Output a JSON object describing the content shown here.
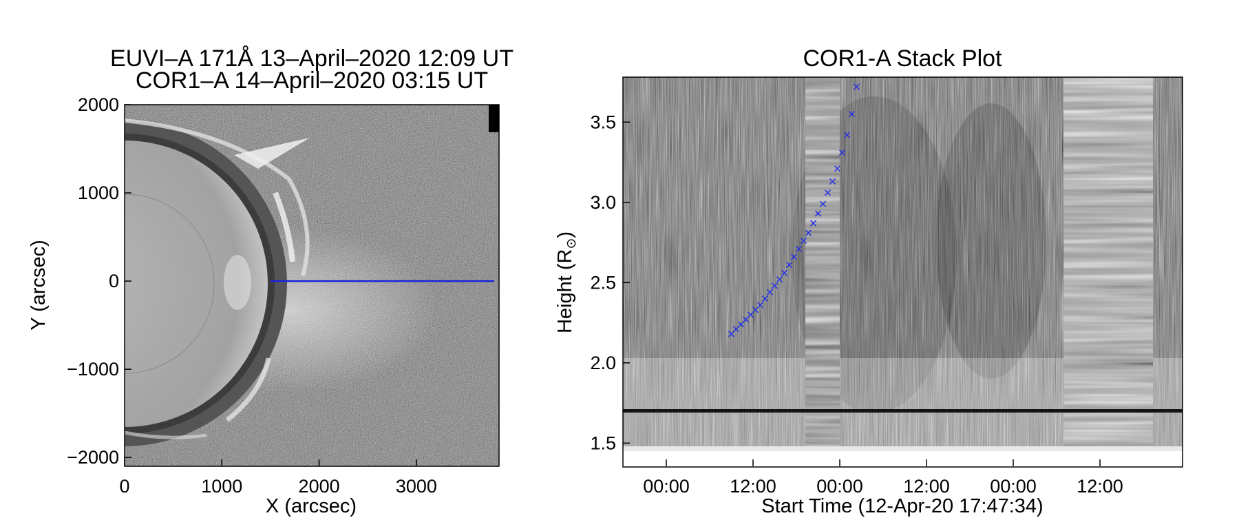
{
  "left_panel": {
    "title_line1": "EUVI–A 171Å 13–April–2020 12:09 UT",
    "title_line2": "COR1–A 14–April–2020 03:15 UT",
    "xlabel": "X (arcsec)",
    "ylabel": "Y (arcsec)",
    "xticks": [
      "0",
      "1000",
      "2000",
      "3000"
    ],
    "yticks": [
      "2000",
      "1000",
      "0",
      "−1000",
      "−2000"
    ],
    "colors": {
      "slit_line": "#1a22dd"
    }
  },
  "right_panel": {
    "title": "COR1-A Stack Plot",
    "xlabel": "Start Time (12-Apr-20 17:47:34)",
    "ylabel": "Height (R",
    "ylabel_sub": "⊙",
    "ylabel_end": ")",
    "xticks": [
      "00:00",
      "12:00",
      "00:00",
      "12:00",
      "00:00",
      "12:00"
    ],
    "yticks": [
      "3.5",
      "3.0",
      "2.5",
      "2.0",
      "1.5"
    ],
    "colors": {
      "track_marks": "#2a35e0"
    }
  },
  "chart_data": [
    {
      "type": "scatter",
      "title": "EUVI–A 171Å 13–April–2020 12:09 UT / COR1–A 14–April–2020 03:15 UT",
      "xlabel": "X (arcsec)",
      "ylabel": "Y (arcsec)",
      "xlim": [
        0,
        3850
      ],
      "ylim": [
        -2100,
        2000
      ],
      "slit": {
        "x": [
          1500,
          3800
        ],
        "y": [
          0,
          0
        ]
      }
    },
    {
      "type": "scatter",
      "title": "COR1-A Stack Plot",
      "xlabel": "Start Time (12-Apr-20 17:47:34)",
      "ylabel": "Height (R⊙)",
      "ylim": [
        1.45,
        3.78
      ],
      "series": [
        {
          "x": [
            "13-Apr-20 09:00",
            "13-Apr-20 09:40",
            "13-Apr-20 10:20",
            "13-Apr-20 11:00",
            "13-Apr-20 11:40",
            "13-Apr-20 12:20",
            "13-Apr-20 13:00",
            "13-Apr-20 13:40",
            "13-Apr-20 14:20",
            "13-Apr-20 15:00",
            "13-Apr-20 15:40",
            "13-Apr-20 16:20",
            "13-Apr-20 17:00",
            "13-Apr-20 17:40",
            "13-Apr-20 18:20",
            "13-Apr-20 19:00",
            "13-Apr-20 19:40",
            "13-Apr-20 20:20",
            "13-Apr-20 21:00",
            "13-Apr-20 21:40",
            "13-Apr-20 22:20",
            "13-Apr-20 23:00",
            "13-Apr-20 23:40",
            "14-Apr-20 00:20",
            "14-Apr-20 01:00",
            "14-Apr-20 01:40",
            "14-Apr-20 02:20"
          ],
          "y": [
            2.18,
            2.21,
            2.24,
            2.27,
            2.3,
            2.33,
            2.36,
            2.4,
            2.44,
            2.48,
            2.52,
            2.56,
            2.61,
            2.66,
            2.71,
            2.76,
            2.81,
            2.87,
            2.93,
            2.99,
            3.06,
            3.13,
            3.21,
            3.31,
            3.42,
            3.55,
            3.72
          ]
        }
      ]
    }
  ]
}
